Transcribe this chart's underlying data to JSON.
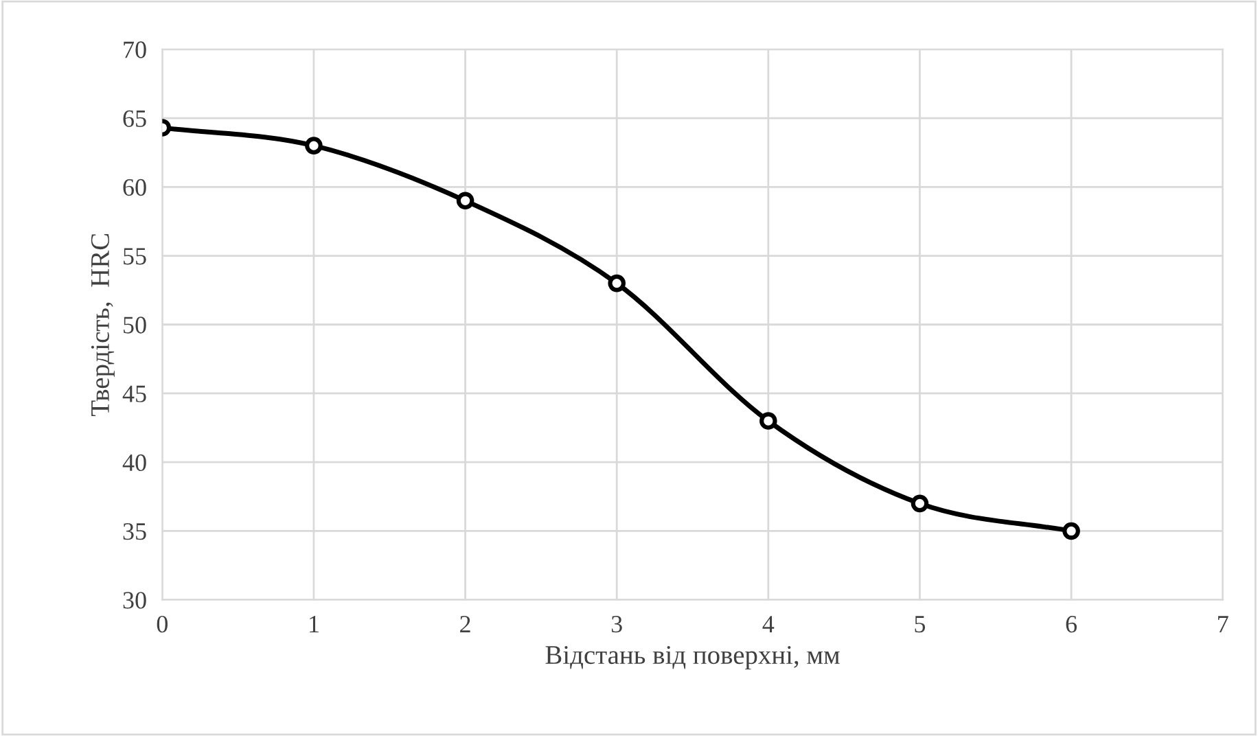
{
  "chart_data": {
    "type": "line",
    "xlabel": "Відстань від поверхні, мм",
    "ylabel": "Твердість,  HRC",
    "x": [
      0,
      1,
      2,
      3,
      4,
      5,
      6
    ],
    "series": [
      {
        "color": "#000000",
        "values": [
          64.3,
          63,
          59,
          53,
          43,
          37,
          35
        ]
      }
    ],
    "xlim": [
      0,
      7
    ],
    "xticks": [
      0,
      1,
      2,
      3,
      4,
      5,
      6,
      7
    ],
    "ylim": [
      30,
      70
    ],
    "yticks": [
      30,
      35,
      40,
      45,
      50,
      55,
      60,
      65,
      70
    ],
    "grid": true,
    "marker": "circle",
    "line_style": "solid"
  }
}
